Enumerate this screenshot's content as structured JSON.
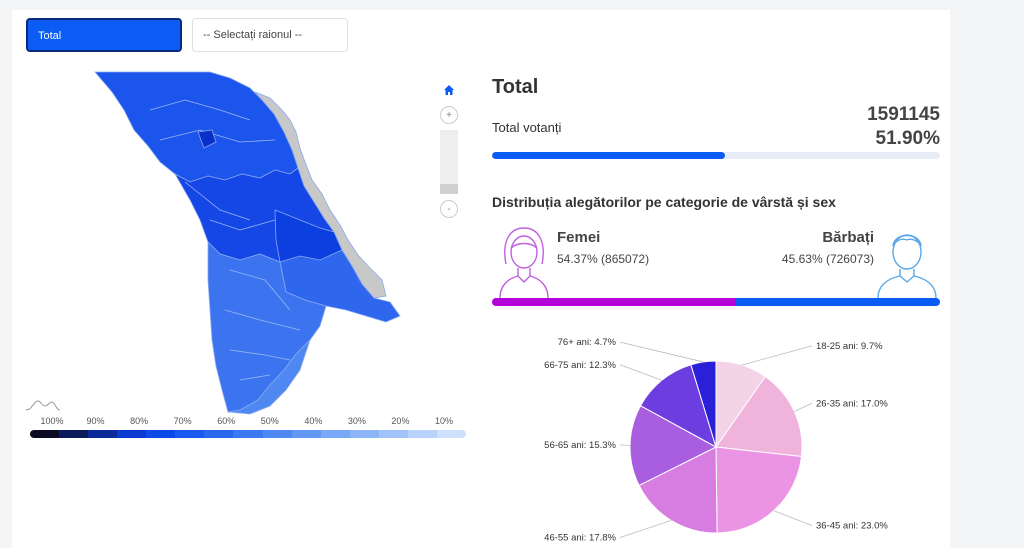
{
  "controls": {
    "total_button": "Total",
    "district_select": "-- Selectați raionul --"
  },
  "map": {
    "zoom_in": "+",
    "zoom_out": "-",
    "icons": [
      "home-icon"
    ],
    "legend_ticks": [
      "100%",
      "90%",
      "80%",
      "70%",
      "60%",
      "50%",
      "40%",
      "30%",
      "20%",
      "10%"
    ],
    "legend_colors": [
      "#0b0c24",
      "#0a1a5c",
      "#0a2a9a",
      "#0a3ad0",
      "#0b4ae8",
      "#1a5af0",
      "#2a68f0",
      "#3c78f2",
      "#4e88f4",
      "#6498f5",
      "#78a8f7",
      "#8cb6f8",
      "#a2c4fa",
      "#b8d2fb",
      "#cfe0fd"
    ],
    "colors": {
      "region_dark": "#0b3fe0",
      "region_mid": "#1c55ec",
      "region_light": "#4a80f0",
      "no_data": "#c8c8c8"
    }
  },
  "summary": {
    "title": "Total",
    "voters_label": "Total votanți",
    "voters_count": "1591145",
    "turnout_pct": "51.90%",
    "turnout_fraction": 0.519
  },
  "demographics": {
    "title": "Distribuția alegătorilor pe categorie de vârstă și sex",
    "female_label": "Femei",
    "female_value": "54.37% (865072)",
    "female_fraction": 0.5437,
    "male_label": "Bărbați",
    "male_value": "45.63% (726073)",
    "male_fraction": 0.4563,
    "colors": {
      "female": "#b400d9",
      "male": "#0a5cf5"
    }
  },
  "chart_data": {
    "type": "pie",
    "categories": [
      "18-25 ani",
      "26-35 ani",
      "36-45 ani",
      "46-55 ani",
      "56-65 ani",
      "66-75 ani",
      "76+ ani"
    ],
    "values": [
      9.7,
      17.0,
      23.0,
      17.8,
      15.3,
      12.3,
      4.7
    ],
    "labels": [
      "18-25 ani: 9.7%",
      "26-35 ani: 17.0%",
      "36-45 ani: 23.0%",
      "46-55 ani: 17.8%",
      "56-65 ani: 15.3%",
      "66-75 ani: 12.3%",
      "76+ ani: 4.7%"
    ],
    "colors": [
      "#f2d4e6",
      "#f0b4dc",
      "#ec94e4",
      "#d77ce0",
      "#a95ee0",
      "#6c3ee0",
      "#2a20d8"
    ]
  }
}
